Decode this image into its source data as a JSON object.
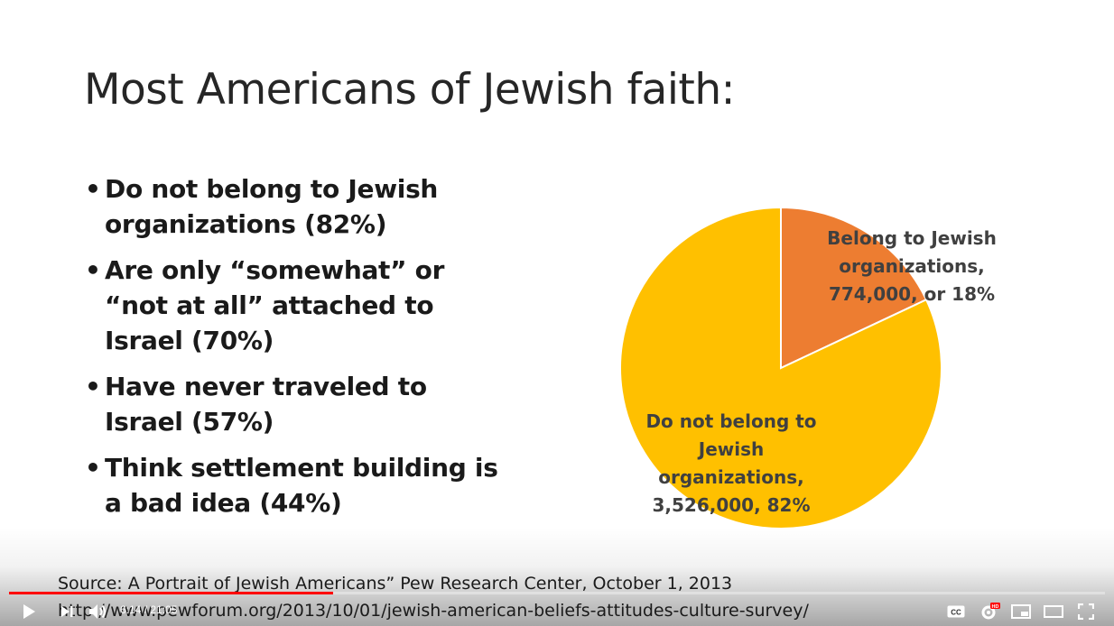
{
  "slide": {
    "title": "Most Americans of Jewish faith:",
    "bullets": [
      "Do not belong to Jewish organizations (82%)",
      "Are only “somewhat” or “not at all” attached to Israel (70%)",
      "Have never traveled to Israel (57%)",
      "Think settlement building is a bad idea (44%)"
    ],
    "source_line1": "Source: A Portrait of Jewish Americans” Pew Research Center, October 1, 2013",
    "source_line2": "http://www.pewforum.org/2013/10/01/jewish-american-beliefs-attitudes-culture-survey/"
  },
  "chart_data": {
    "type": "pie",
    "slices": [
      {
        "label": "Belong to Jewish organizations, 774,000, or 18%",
        "value": 18,
        "count": "774,000",
        "color": "#ed7d31"
      },
      {
        "label": "Do not belong to Jewish organizations, 3,526,000, 82%",
        "value": 82,
        "count": "3,526,000",
        "color": "#ffc000"
      }
    ],
    "labels": {
      "belong": [
        "Belong to Jewish",
        "organizations,",
        "774,000, or 18%"
      ],
      "not_belong": [
        "Do not belong to",
        "Jewish",
        "organizations,",
        "3,526,000, 82%"
      ]
    }
  },
  "player": {
    "current_time": "6:14",
    "duration": "21:05",
    "time_display": "6:14 / 21:05",
    "progress": 0.296,
    "progress_color": "#ff0000",
    "hd_badge": "HD",
    "icons": [
      "play-icon",
      "next-icon",
      "volume-icon",
      "captions-icon",
      "settings-icon",
      "miniplayer-icon",
      "theater-icon",
      "fullscreen-icon"
    ]
  }
}
